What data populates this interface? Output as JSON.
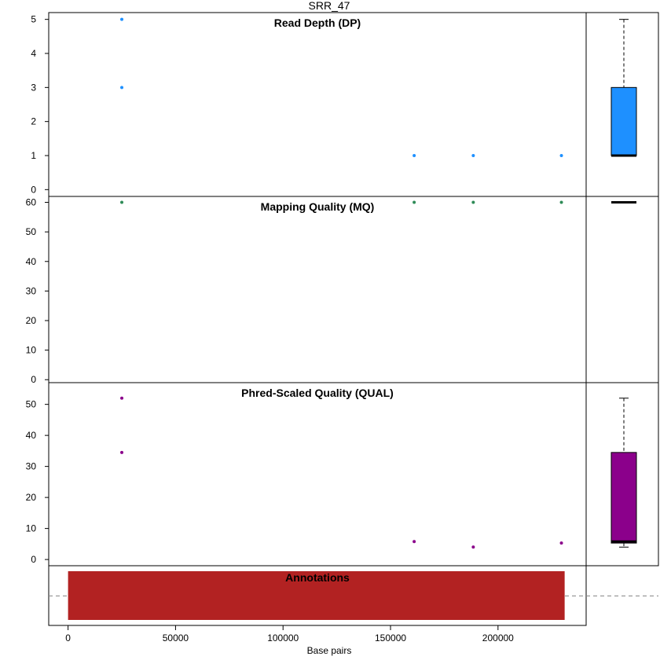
{
  "chart_data": {
    "type": "scatter",
    "title": "SRR_47",
    "xlabel": "Base pairs",
    "xlim": [
      -9000,
      241000
    ],
    "xticks": [
      0,
      50000,
      100000,
      150000,
      200000
    ],
    "panels": [
      {
        "id": "dp",
        "title": "Read Depth (DP)",
        "color": "#1e90ff",
        "ylim": [
          -0.2,
          5.2
        ],
        "yticks": [
          0,
          1,
          2,
          3,
          4,
          5
        ],
        "points": [
          {
            "x": 25000,
            "y": 5
          },
          {
            "x": 25000,
            "y": 3
          },
          {
            "x": 161000,
            "y": 1
          },
          {
            "x": 188500,
            "y": 1
          },
          {
            "x": 229500,
            "y": 1
          }
        ],
        "boxplot": {
          "min": 1,
          "q1": 1,
          "median": 1,
          "q3": 3,
          "max": 5
        }
      },
      {
        "id": "mq",
        "title": "Mapping Quality (MQ)",
        "color": "#2e8b57",
        "ylim": [
          -1,
          62
        ],
        "yticks": [
          0,
          10,
          20,
          30,
          40,
          50,
          60
        ],
        "points": [
          {
            "x": 25000,
            "y": 60
          },
          {
            "x": 161000,
            "y": 60
          },
          {
            "x": 188500,
            "y": 60
          },
          {
            "x": 229500,
            "y": 60
          }
        ],
        "boxplot": {
          "min": 60,
          "q1": 60,
          "median": 60,
          "q3": 60,
          "max": 60
        }
      },
      {
        "id": "qual",
        "title": "Phred-Scaled Quality (QUAL)",
        "color": "#8b008b",
        "ylim": [
          -2,
          57
        ],
        "yticks": [
          0,
          10,
          20,
          30,
          40,
          50
        ],
        "points": [
          {
            "x": 25000,
            "y": 52
          },
          {
            "x": 25000,
            "y": 34.5
          },
          {
            "x": 161000,
            "y": 5.8
          },
          {
            "x": 188500,
            "y": 4
          },
          {
            "x": 229500,
            "y": 5.3
          }
        ],
        "boxplot": {
          "min": 4,
          "q1": 5.3,
          "median": 5.8,
          "q3": 34.5,
          "max": 52
        }
      }
    ],
    "annotations": {
      "title": "Annotations",
      "color": "#b22222",
      "start": 0,
      "end": 231000
    }
  }
}
